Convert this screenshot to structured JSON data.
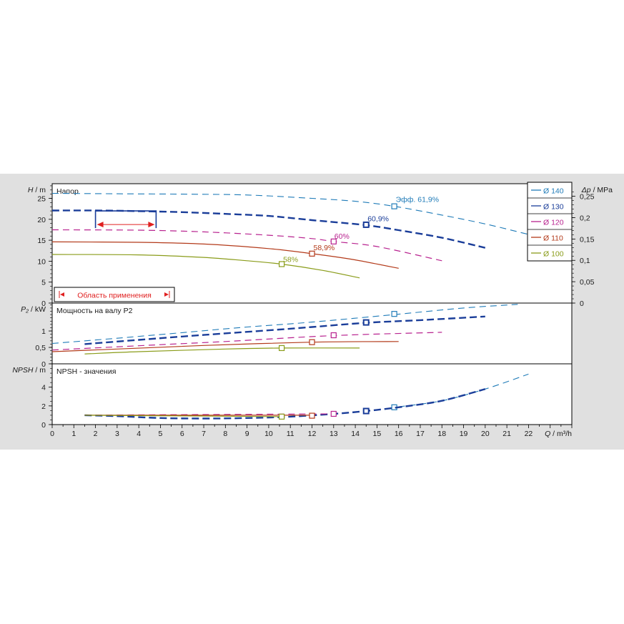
{
  "chart_data": {
    "type": "line",
    "x": {
      "label": "Q",
      "unit": "m³/h",
      "range": [
        0,
        24
      ],
      "ticks": [
        0,
        1,
        2,
        3,
        4,
        5,
        6,
        7,
        8,
        9,
        10,
        11,
        12,
        13,
        14,
        15,
        16,
        17,
        18,
        19,
        20,
        21,
        22
      ]
    },
    "panels": {
      "head": {
        "label": "H",
        "unit": "m",
        "title": "Напор",
        "range": [
          0,
          28.5
        ],
        "ticks": [
          0,
          5,
          10,
          15,
          20,
          25
        ],
        "right_axis": {
          "label": "Δp",
          "unit": "MPa",
          "tick_labels": [
            "0",
            "0,05",
            "0,1",
            "0,15",
            "0,2",
            "0,25"
          ],
          "ticks": [
            0,
            0.05,
            0.1,
            0.15,
            0.2,
            0.25
          ]
        }
      },
      "power": {
        "label": "P₂",
        "unit": "kW",
        "title": "Мощность на валу P2",
        "range": [
          0,
          1.85
        ],
        "ticks": [
          0,
          0.5,
          1
        ],
        "tick_labels": [
          "0",
          "0,5",
          "1"
        ]
      },
      "npsh": {
        "label": "NPSH",
        "unit": "m",
        "title": "NPSH - значения",
        "range": [
          0,
          6.5
        ],
        "ticks": [
          0,
          2,
          4
        ]
      }
    },
    "application_range": {
      "label": "Область применения",
      "q_range": [
        2,
        4.8
      ],
      "h_level": 22
    },
    "series": [
      {
        "name": "Ø 140",
        "color": "#1f7bb8",
        "width": 1.1,
        "dash": "9,6",
        "head": [
          [
            0,
            26.2
          ],
          [
            3,
            26.1
          ],
          [
            6,
            26
          ],
          [
            9,
            25.8
          ],
          [
            12,
            25
          ],
          [
            14,
            24.3
          ],
          [
            15.8,
            23.1
          ],
          [
            18,
            21
          ],
          [
            20,
            18.9
          ],
          [
            22,
            16.4
          ],
          [
            23,
            15.3
          ]
        ],
        "power": [
          [
            0,
            0.62
          ],
          [
            3,
            0.78
          ],
          [
            6,
            0.95
          ],
          [
            9,
            1.12
          ],
          [
            12,
            1.27
          ],
          [
            15.8,
            1.5
          ],
          [
            19,
            1.7
          ],
          [
            21.5,
            1.81
          ]
        ],
        "npsh": [
          [
            16,
            1.9
          ],
          [
            18,
            2.55
          ],
          [
            20,
            3.8
          ],
          [
            22,
            5.4
          ]
        ],
        "bep": {
          "q": 15.8,
          "h": 23.1,
          "p": 1.52,
          "npsh": 1.85,
          "label": "Эфф.  61,9%"
        }
      },
      {
        "name": "Ø 130",
        "color": "#1a3d99",
        "width": 2.4,
        "dash": "10,5",
        "head": [
          [
            0,
            22.1
          ],
          [
            2,
            22.1
          ],
          [
            4,
            21.95
          ],
          [
            6,
            21.7
          ],
          [
            8,
            21.3
          ],
          [
            10,
            20.8
          ],
          [
            12,
            19.8
          ],
          [
            14.5,
            18.6
          ],
          [
            16,
            17.4
          ],
          [
            18,
            15.6
          ],
          [
            20,
            13.2
          ]
        ],
        "power": [
          [
            1.5,
            0.6
          ],
          [
            4,
            0.73
          ],
          [
            7,
            0.88
          ],
          [
            10,
            1.02
          ],
          [
            12,
            1.12
          ],
          [
            14.5,
            1.25
          ],
          [
            17,
            1.33
          ],
          [
            20,
            1.44
          ]
        ],
        "npsh": [
          [
            1.5,
            1.0
          ],
          [
            3,
            0.9
          ],
          [
            5,
            0.7
          ],
          [
            7,
            0.65
          ],
          [
            9,
            0.7
          ],
          [
            11,
            0.85
          ],
          [
            13,
            1.15
          ],
          [
            14.5,
            1.45
          ],
          [
            16,
            1.85
          ],
          [
            18,
            2.55
          ],
          [
            20,
            3.8
          ]
        ],
        "bep": {
          "q": 14.5,
          "h": 18.7,
          "p": 1.26,
          "npsh": 1.45,
          "label": "60,9%"
        }
      },
      {
        "name": "Ø 120",
        "color": "#b8228f",
        "width": 1.2,
        "dash": "9,6",
        "head": [
          [
            0,
            17.5
          ],
          [
            4,
            17.4
          ],
          [
            7,
            17
          ],
          [
            10,
            16.2
          ],
          [
            12,
            15.4
          ],
          [
            13,
            14.7
          ],
          [
            15,
            13.5
          ],
          [
            18,
            10.1
          ]
        ],
        "power": [
          [
            0,
            0.42
          ],
          [
            4,
            0.55
          ],
          [
            8,
            0.68
          ],
          [
            13,
            0.86
          ],
          [
            18,
            0.96
          ]
        ],
        "npsh": [
          [
            1.5,
            1.0
          ],
          [
            13,
            1.15
          ]
        ],
        "bep": {
          "q": 13.0,
          "h": 14.7,
          "p": 0.87,
          "npsh": 1.15,
          "label": "60%"
        }
      },
      {
        "name": "Ø 110",
        "color": "#b33a1a",
        "width": 1.2,
        "dash": "",
        "head": [
          [
            0,
            14.6
          ],
          [
            4,
            14.5
          ],
          [
            7,
            14.1
          ],
          [
            10,
            13
          ],
          [
            12,
            11.8
          ],
          [
            14,
            10.3
          ],
          [
            16,
            8.3
          ]
        ],
        "power": [
          [
            0,
            0.37
          ],
          [
            3,
            0.45
          ],
          [
            7,
            0.56
          ],
          [
            12,
            0.66
          ],
          [
            16,
            0.68
          ]
        ],
        "npsh": [
          [
            1.5,
            1.0
          ],
          [
            12,
            1.0
          ]
        ],
        "bep": {
          "q": 12.0,
          "h": 11.8,
          "p": 0.66,
          "npsh": 0.95,
          "label": "58,9%"
        }
      },
      {
        "name": "Ø 100",
        "color": "#8a9c1a",
        "width": 1.2,
        "dash": "",
        "head": [
          [
            0,
            11.6
          ],
          [
            4,
            11.5
          ],
          [
            7,
            10.9
          ],
          [
            9,
            10.1
          ],
          [
            10.6,
            9.3
          ],
          [
            12.5,
            7.8
          ],
          [
            14.2,
            6
          ]
        ],
        "power": [
          [
            1.5,
            0.3
          ],
          [
            4,
            0.37
          ],
          [
            8,
            0.45
          ],
          [
            10.6,
            0.48
          ],
          [
            14.2,
            0.48
          ]
        ],
        "npsh": [
          [
            1.5,
            1.0
          ],
          [
            10.6,
            0.85
          ]
        ],
        "bep": {
          "q": 10.6,
          "h": 9.3,
          "p": 0.48,
          "npsh": 0.85,
          "label": "58%"
        }
      }
    ],
    "legend": {
      "position": "top-right"
    },
    "grid": true
  }
}
